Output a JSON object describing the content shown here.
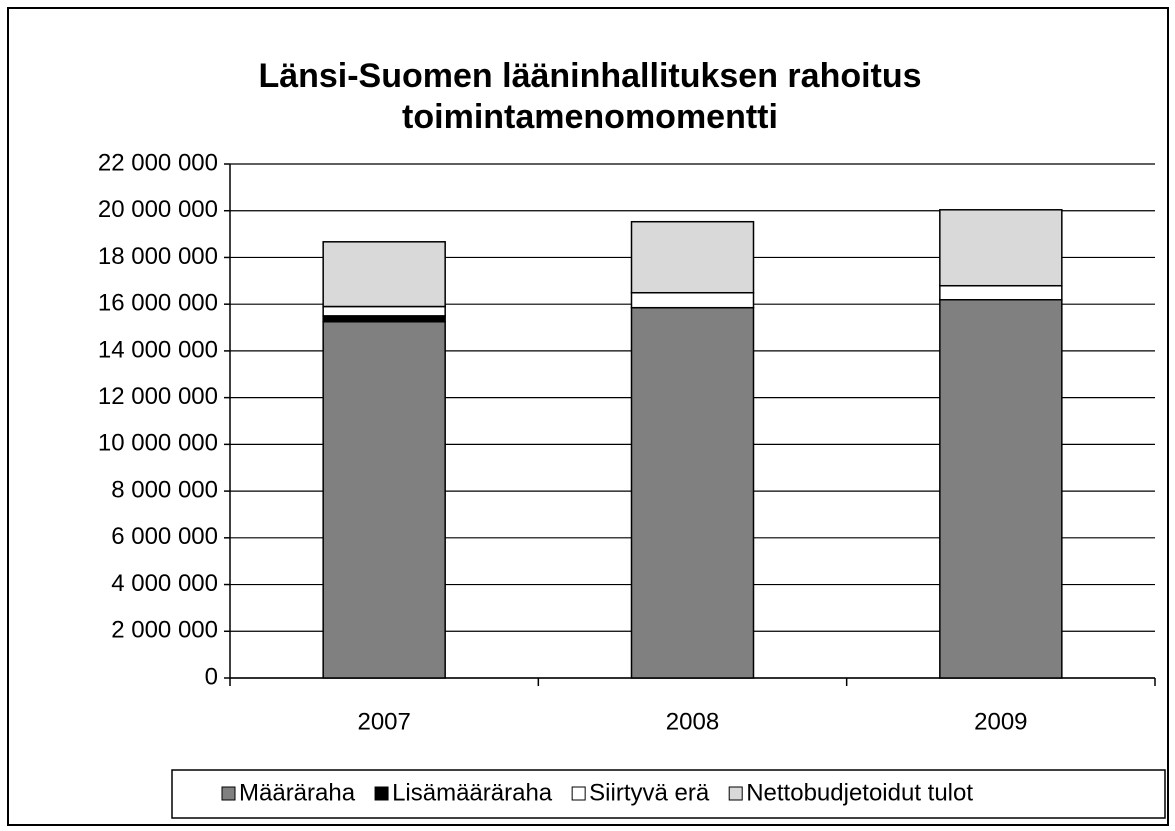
{
  "chart_data": {
    "type": "stacked_bar",
    "title": [
      "Länsi-Suomen lääninhallituksen rahoitus",
      "toimintamenomomentti"
    ],
    "categories": [
      "2007",
      "2008",
      "2009"
    ],
    "series": [
      {
        "name": "Määräraha",
        "color": "#808080",
        "values": [
          15250000,
          15850000,
          16190000
        ]
      },
      {
        "name": "Lisämääräraha",
        "color": "#000000",
        "values": [
          250000,
          0,
          0
        ]
      },
      {
        "name": "Siirtyvä erä",
        "color": "#ffffff",
        "values": [
          400000,
          640000,
          600000
        ]
      },
      {
        "name": "Nettobudjetoidut tulot",
        "color": "#d9d9d9",
        "values": [
          2770000,
          3040000,
          3250000
        ]
      }
    ],
    "ylim": [
      0,
      22000000
    ],
    "yticks": [
      0,
      {
        "value": 2000000,
        "label": "2 000 000"
      },
      {
        "value": 4000000,
        "label": "4 000 000"
      },
      {
        "value": 6000000,
        "label": "6 000 000"
      },
      {
        "value": 8000000,
        "label": "8 000 000"
      },
      {
        "value": 10000000,
        "label": "10 000 000"
      },
      {
        "value": 12000000,
        "label": "12 000 000"
      },
      {
        "value": 14000000,
        "label": "14 000 000"
      },
      {
        "value": 16000000,
        "label": "16 000 000"
      },
      {
        "value": 18000000,
        "label": "18 000 000"
      },
      {
        "value": 20000000,
        "label": "20 000 000"
      },
      {
        "value": 22000000,
        "label": "22 000 000"
      }
    ],
    "grid": true,
    "legend": "bottom"
  }
}
